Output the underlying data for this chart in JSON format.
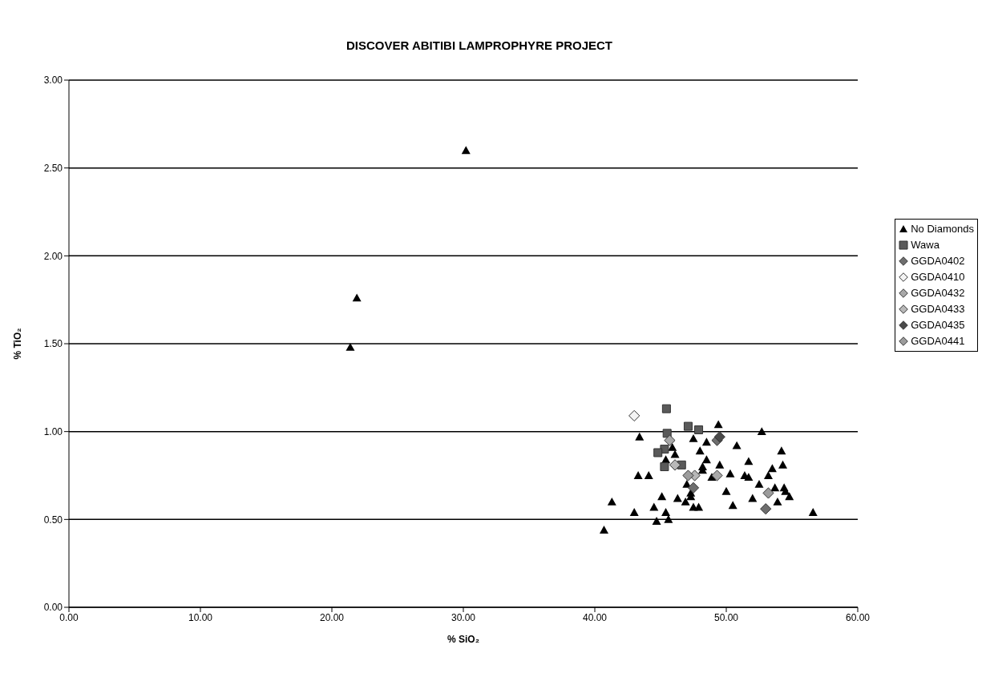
{
  "chart_data": {
    "type": "scatter",
    "title": "DISCOVER ABITIBI LAMPROPHYRE PROJECT",
    "xlabel": "% SiO₂",
    "ylabel": "% TiO₂",
    "xlim": [
      0,
      60
    ],
    "xticks": [
      {
        "value": 0,
        "label": "0.00"
      },
      {
        "value": 10,
        "label": "10.00"
      },
      {
        "value": 20,
        "label": "20.00"
      },
      {
        "value": 30,
        "label": "30.00"
      },
      {
        "value": 40,
        "label": "40.00"
      },
      {
        "value": 50,
        "label": "50.00"
      },
      {
        "value": 60,
        "label": "60.00"
      }
    ],
    "ylim": [
      0,
      3
    ],
    "yticks": [
      {
        "value": 0,
        "label": "0.00"
      },
      {
        "value": 0.5,
        "label": "0.50"
      },
      {
        "value": 1,
        "label": "1.00"
      },
      {
        "value": 1.5,
        "label": "1.50"
      },
      {
        "value": 2,
        "label": "2.00"
      },
      {
        "value": 2.5,
        "label": "2.50"
      },
      {
        "value": 3,
        "label": "3.00"
      }
    ],
    "grid": "y",
    "legend": "right",
    "series": [
      {
        "name": "No Diamonds",
        "color": "#000000",
        "marker": "triangle",
        "x": [
          30.2,
          21.9,
          21.4,
          43.4,
          43.3,
          44.1,
          41.3,
          40.7,
          43.0,
          44.5,
          44.7,
          45.1,
          45.4,
          45.6,
          45.4,
          45.9,
          46.1,
          46.3,
          46.9,
          47.0,
          47.3,
          47.3,
          47.5,
          47.9,
          47.5,
          48.0,
          48.5,
          48.5,
          48.2,
          48.2,
          49.4,
          49.5,
          48.9,
          50.0,
          50.3,
          50.5,
          50.8,
          51.4,
          51.7,
          51.7,
          52.7,
          54.2,
          54.3,
          52.5,
          53.5,
          53.2,
          53.7,
          54.4,
          54.5,
          54.8,
          52.0,
          53.9,
          56.6
        ],
        "values": [
          2.6,
          1.76,
          1.48,
          0.97,
          0.75,
          0.75,
          0.6,
          0.44,
          0.54,
          0.57,
          0.49,
          0.63,
          0.54,
          0.5,
          0.84,
          0.91,
          0.87,
          0.62,
          0.6,
          0.7,
          0.65,
          0.63,
          0.57,
          0.57,
          0.96,
          0.89,
          0.84,
          0.94,
          0.8,
          0.78,
          1.04,
          0.81,
          0.74,
          0.66,
          0.76,
          0.58,
          0.92,
          0.75,
          0.74,
          0.83,
          1.0,
          0.89,
          0.81,
          0.7,
          0.79,
          0.75,
          0.68,
          0.68,
          0.66,
          0.63,
          0.62,
          0.6,
          0.54
        ]
      },
      {
        "name": "Wawa",
        "color": "#5a5a5a",
        "marker": "square",
        "x": [
          45.45,
          47.1,
          47.9,
          45.5,
          45.3,
          44.8,
          46.6,
          45.3
        ],
        "values": [
          1.13,
          1.03,
          1.01,
          0.99,
          0.9,
          0.88,
          0.81,
          0.8
        ]
      },
      {
        "name": "GGDA0402",
        "color": "#6e6e6e",
        "marker": "diamond",
        "x": [
          49.3,
          53.0,
          47.5
        ],
        "values": [
          0.95,
          0.56,
          0.68
        ]
      },
      {
        "name": "GGDA0410",
        "color": "#f4f4f4",
        "marker": "diamond",
        "x": [
          43.0
        ],
        "values": [
          1.09
        ]
      },
      {
        "name": "GGDA0432",
        "color": "#a8a8a8",
        "marker": "diamond",
        "x": [
          45.7,
          49.3
        ],
        "values": [
          0.95,
          0.75
        ]
      },
      {
        "name": "GGDA0433",
        "color": "#b8b8b8",
        "marker": "diamond",
        "x": [
          46.1,
          47.6
        ],
        "values": [
          0.81,
          0.75
        ]
      },
      {
        "name": "GGDA0435",
        "color": "#4a4a4a",
        "marker": "diamond",
        "x": [
          49.5
        ],
        "values": [
          0.97
        ]
      },
      {
        "name": "GGDA0441",
        "color": "#9c9c9c",
        "marker": "diamond",
        "x": [
          47.1,
          53.2
        ],
        "values": [
          0.75,
          0.65
        ]
      }
    ]
  }
}
